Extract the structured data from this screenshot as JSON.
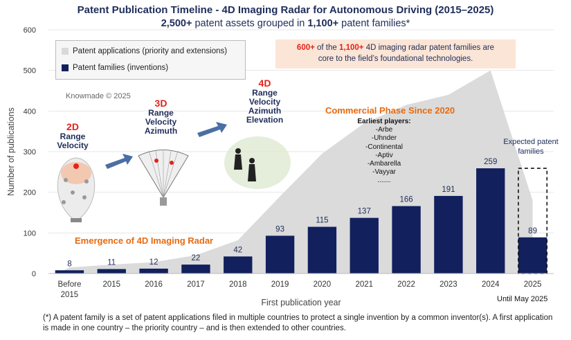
{
  "title": "Patent Publication Timeline - 4D Imaging Radar for Autonomous Driving (2015–2025)",
  "subtitle_pre": "2,500+",
  "subtitle_mid": " patent assets grouped in ",
  "subtitle_bold2": "1,100+",
  "subtitle_post": " patent families*",
  "legend": {
    "applications": "Patent applications (priority and extensions)",
    "families": "Patent families (inventions)"
  },
  "callout": {
    "a": "600+",
    "b": " of the ",
    "c": "1,100+",
    "d": " 4D imaging radar patent families are",
    "e": "core to the field’s foundational technologies."
  },
  "watermark": "Knowmade © 2025",
  "dims": {
    "d2": {
      "num": "2D",
      "l1": "Range",
      "l2": "Velocity"
    },
    "d3": {
      "num": "3D",
      "l1": "Range",
      "l2": "Velocity",
      "l3": "Azimuth"
    },
    "d4": {
      "num": "4D",
      "l1": "Range",
      "l2": "Velocity",
      "l3": "Azimuth",
      "l4": "Elevation"
    }
  },
  "commercial": "Commercial Phase Since 2020",
  "emergence": "Emergence of 4D Imaging Radar",
  "players": {
    "header": "Earliest players:",
    "list": [
      "-Arbe",
      "-Uhnder",
      "-Continental",
      "-Aptiv",
      "-Ambarella",
      "-Vayyar",
      "......."
    ]
  },
  "expected": "Expected patent families",
  "until": "Until May 2025",
  "footnote": "(*) A patent family is a set of patent applications filed in multiple countries to protect a single invention by a common inventor(s). A first application is made in one country – the priority country – and is then extended to other countries.",
  "colors": {
    "bar": "#12205e",
    "area": "#d9d9d9",
    "title": "#1f2d5a",
    "accent": "#e2231a",
    "orange": "#e86a10"
  },
  "chart_data": {
    "type": "bar",
    "title": "Patent Publication Timeline - 4D Imaging Radar for Autonomous Driving (2015–2025)",
    "xlabel": "First publication year",
    "ylabel": "Number of publications",
    "ylim": [
      0,
      600
    ],
    "yticks": [
      "0",
      "100",
      "200",
      "300",
      "400",
      "500",
      "600"
    ],
    "categories": [
      "Before 2015",
      "2015",
      "2016",
      "2017",
      "2018",
      "2019",
      "2020",
      "2021",
      "2022",
      "2023",
      "2024",
      "2025"
    ],
    "series": [
      {
        "name": "Patent families (inventions)",
        "values": [
          8,
          11,
          12,
          22,
          42,
          93,
          115,
          137,
          166,
          191,
          259,
          89
        ]
      },
      {
        "name": "Patent applications (priority and extensions)",
        "values": [
          15,
          22,
          28,
          45,
          82,
          190,
          295,
          370,
          415,
          440,
          500,
          180
        ]
      }
    ],
    "expected_families_2025": 259
  }
}
